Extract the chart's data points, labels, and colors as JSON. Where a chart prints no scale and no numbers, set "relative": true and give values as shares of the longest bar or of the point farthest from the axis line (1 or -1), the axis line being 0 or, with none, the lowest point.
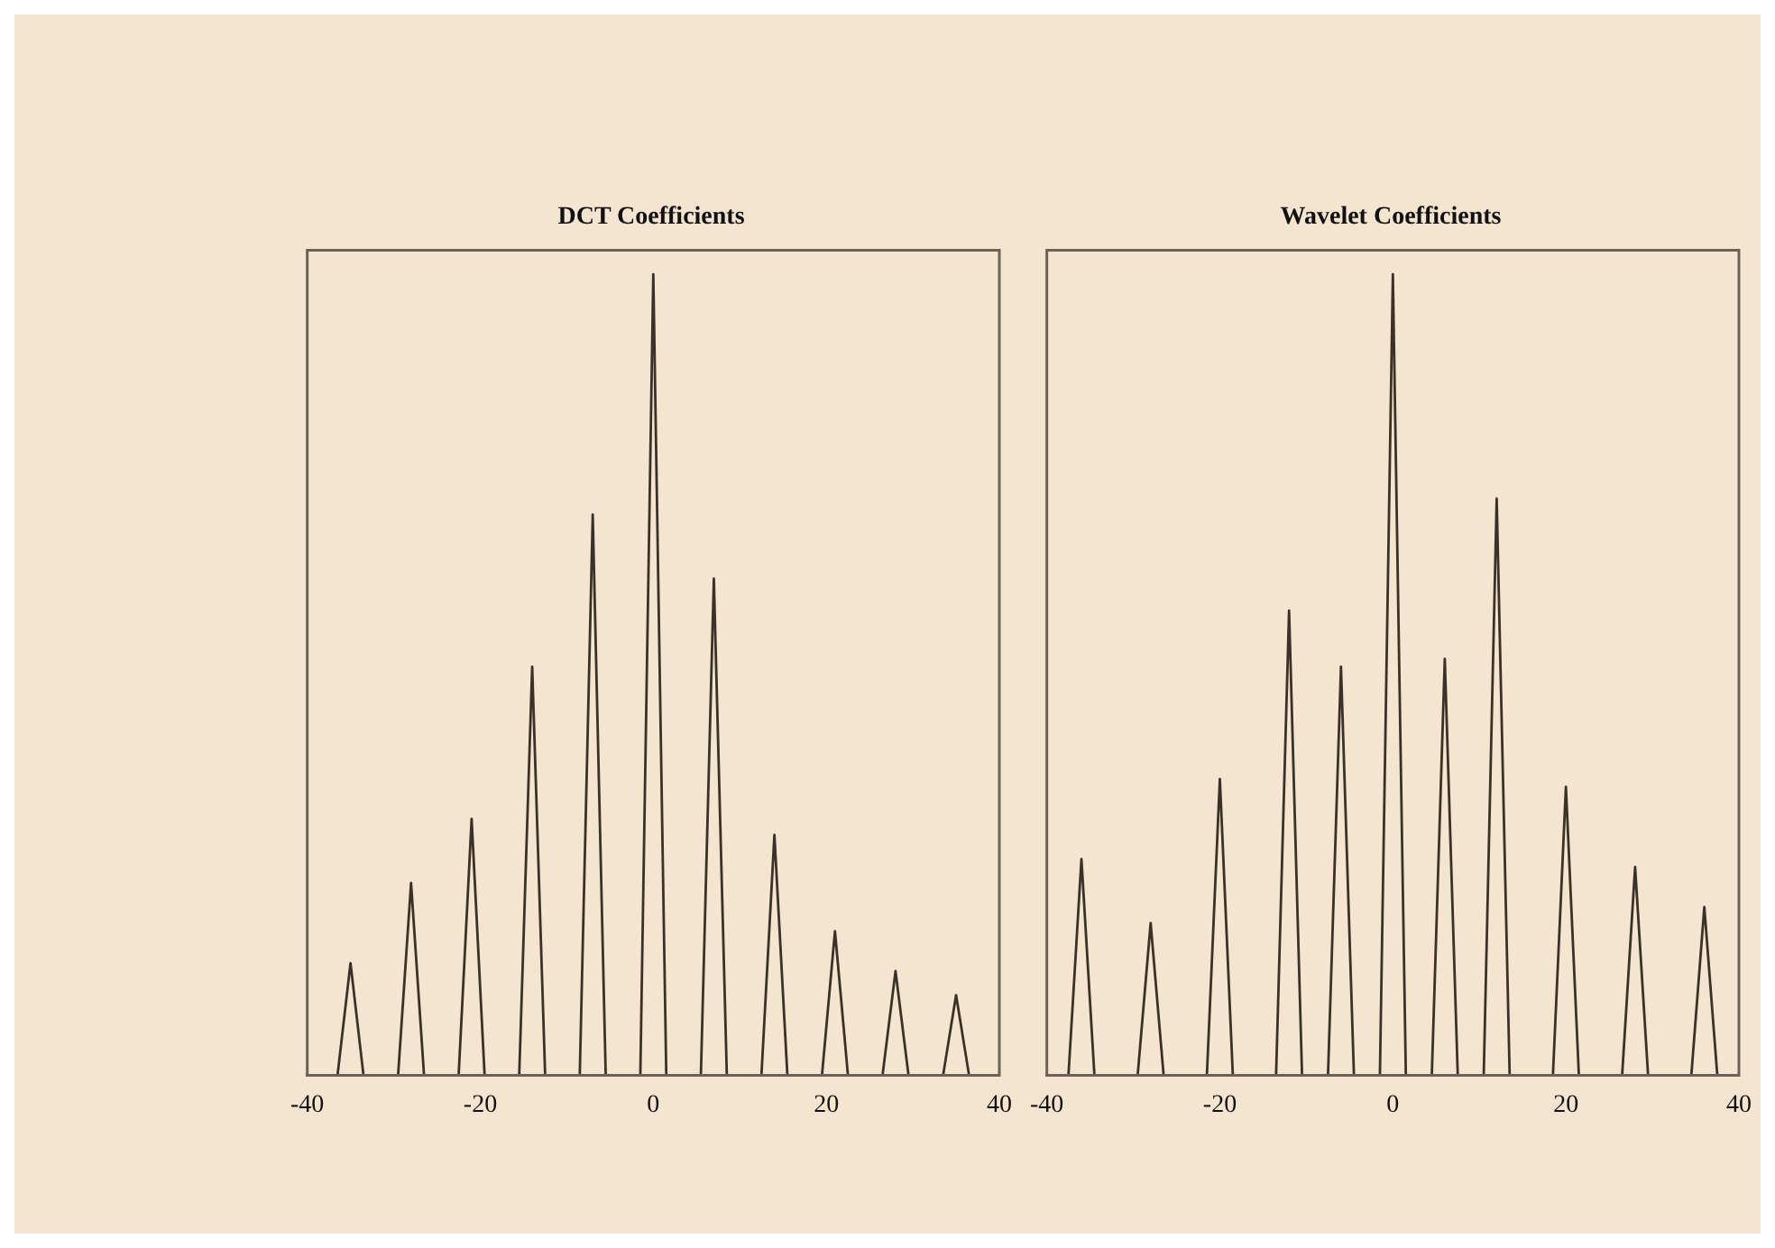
{
  "chart_data": [
    {
      "type": "line",
      "title": "DCT Coefficients",
      "relative": true,
      "xlim": [
        -40,
        40
      ],
      "xticks": [
        -40,
        -20,
        0,
        20,
        40
      ],
      "marker": "none",
      "x": [
        -36.5,
        -35,
        -33.5,
        -29.5,
        -28,
        -26.5,
        -22.5,
        -21,
        -19.5,
        -15.5,
        -14,
        -12.5,
        -8.5,
        -7,
        -5.5,
        -1.5,
        0,
        1.5,
        5.5,
        7,
        8.5,
        12.5,
        14,
        15.5,
        19.5,
        21,
        22.5,
        26.5,
        28,
        29.5,
        33.5,
        35,
        36.5
      ],
      "series": [
        {
          "color": "#3a3228",
          "values": [
            0,
            0.14,
            0,
            0,
            0.24,
            0,
            0,
            0.32,
            0,
            0,
            0.51,
            0,
            0,
            0.7,
            0,
            0,
            1,
            0,
            0,
            0.62,
            0,
            0,
            0.3,
            0,
            0,
            0.18,
            0,
            0,
            0.13,
            0,
            0,
            0.1,
            0
          ]
        }
      ]
    },
    {
      "type": "line",
      "title": "Wavelet Coefficients",
      "relative": true,
      "xlim": [
        -40,
        40
      ],
      "xticks": [
        -40,
        -20,
        0,
        20,
        40
      ],
      "marker": "none",
      "x": [
        -37.5,
        -36,
        -34.5,
        -29.5,
        -28,
        -26.5,
        -21.5,
        -20,
        -18.5,
        -13.5,
        -12,
        -10.5,
        -7.5,
        -6,
        -4.5,
        -1.5,
        0,
        1.5,
        4.5,
        6,
        7.5,
        10.5,
        12,
        13.5,
        18.5,
        20,
        21.5,
        26.5,
        28,
        29.5,
        34.5,
        36,
        37.5
      ],
      "series": [
        {
          "color": "#3a3228",
          "values": [
            0,
            0.27,
            0,
            0,
            0.19,
            0,
            0,
            0.37,
            0,
            0,
            0.58,
            0,
            0,
            0.51,
            0,
            0,
            1,
            0,
            0,
            0.52,
            0,
            0,
            0.72,
            0,
            0,
            0.36,
            0,
            0,
            0.26,
            0,
            0,
            0.21,
            0
          ]
        }
      ]
    }
  ]
}
